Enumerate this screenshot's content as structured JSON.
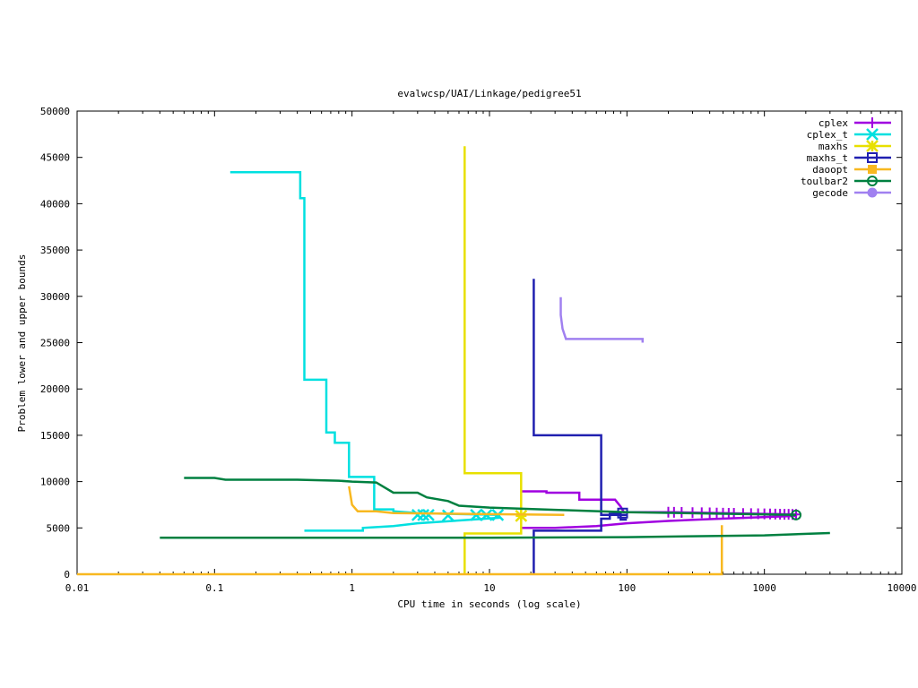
{
  "chart_data": {
    "type": "line",
    "title": "evalwcsp/UAI/Linkage/pedigree51",
    "xlabel": "CPU time in seconds (log scale)",
    "ylabel": "Problem lower and upper bounds",
    "x_scale": "log",
    "xlim": [
      0.01,
      10000
    ],
    "ylim": [
      0,
      50000
    ],
    "xticks": [
      0.01,
      0.1,
      1,
      10,
      100,
      1000,
      10000
    ],
    "xtick_labels": [
      "0.01",
      "0.1",
      "1",
      "10",
      "100",
      "1000",
      "10000"
    ],
    "yticks": [
      0,
      5000,
      10000,
      15000,
      20000,
      25000,
      30000,
      35000,
      40000,
      45000,
      50000
    ],
    "ytick_labels": [
      "0",
      "5000",
      "10000",
      "15000",
      "20000",
      "25000",
      "30000",
      "35000",
      "40000",
      "45000",
      "50000"
    ],
    "grid": false,
    "legend_position": "top-right",
    "series": [
      {
        "name": "cplex",
        "color": "#a000e0",
        "marker": "plus",
        "upper": [
          [
            17,
            8950
          ],
          [
            26,
            8950
          ],
          [
            26,
            8800
          ],
          [
            45,
            8800
          ],
          [
            45,
            8050
          ],
          [
            82,
            8050
          ],
          [
            90,
            7300
          ],
          [
            95,
            6700
          ],
          [
            200,
            6700
          ],
          [
            1700,
            6450
          ]
        ],
        "lower": [
          [
            17,
            5000
          ],
          [
            30,
            5000
          ],
          [
            60,
            5200
          ],
          [
            100,
            5500
          ],
          [
            200,
            5750
          ],
          [
            400,
            5950
          ],
          [
            1700,
            6300
          ]
        ],
        "markers_x": [
          200,
          220,
          250,
          300,
          350,
          400,
          450,
          500,
          550,
          600,
          700,
          800,
          900,
          1000,
          1100,
          1200,
          1300,
          1400,
          1500,
          1600,
          1700
        ]
      },
      {
        "name": "cplex_t",
        "color": "#00e0e0",
        "marker": "cross",
        "upper": [
          [
            0.13,
            43400
          ],
          [
            0.42,
            43400
          ],
          [
            0.42,
            40600
          ],
          [
            0.45,
            40600
          ],
          [
            0.45,
            21000
          ],
          [
            0.65,
            21000
          ],
          [
            0.65,
            15300
          ],
          [
            0.75,
            15300
          ],
          [
            0.75,
            14200
          ],
          [
            0.95,
            14200
          ],
          [
            0.95,
            10500
          ],
          [
            1.45,
            10500
          ],
          [
            1.45,
            7000
          ],
          [
            2.0,
            7000
          ],
          [
            2.0,
            6800
          ],
          [
            3.0,
            6600
          ],
          [
            12,
            6400
          ]
        ],
        "lower": [
          [
            0.45,
            4700
          ],
          [
            1.2,
            4700
          ],
          [
            1.2,
            5000
          ],
          [
            2.0,
            5200
          ],
          [
            3.0,
            5500
          ],
          [
            6.0,
            5800
          ],
          [
            12,
            6100
          ]
        ],
        "markers": [
          [
            3.0,
            6400
          ],
          [
            3.3,
            6400
          ],
          [
            3.6,
            6400
          ],
          [
            5.0,
            6350
          ],
          [
            8.0,
            6400
          ],
          [
            9.5,
            6400
          ],
          [
            11.5,
            6400
          ]
        ]
      },
      {
        "name": "maxhs",
        "color": "#e8e000",
        "marker": "star",
        "upper": [
          [
            6.6,
            46200
          ],
          [
            6.6,
            10900
          ],
          [
            17,
            10900
          ],
          [
            17,
            6300
          ]
        ],
        "lower": [
          [
            6.6,
            0
          ],
          [
            6.6,
            4400
          ],
          [
            17,
            4400
          ],
          [
            17,
            6300
          ]
        ],
        "markers": [
          [
            17,
            6300
          ]
        ]
      },
      {
        "name": "maxhs_t",
        "color": "#2020b0",
        "marker": "square",
        "upper": [
          [
            21,
            31900
          ],
          [
            21,
            15000
          ],
          [
            65,
            15000
          ],
          [
            65,
            6400
          ],
          [
            100,
            6400
          ]
        ],
        "lower": [
          [
            21,
            0
          ],
          [
            21,
            4700
          ],
          [
            65,
            4700
          ],
          [
            65,
            6000
          ],
          [
            75,
            6000
          ],
          [
            75,
            6500
          ],
          [
            90,
            6500
          ],
          [
            90,
            5900
          ],
          [
            100,
            5900
          ]
        ],
        "markers": [
          [
            93,
            6600
          ]
        ]
      },
      {
        "name": "daoopt",
        "color": "#f8b820",
        "marker": "filled-square",
        "upper": [
          [
            0.95,
            9500
          ],
          [
            1.0,
            7500
          ],
          [
            1.1,
            6800
          ],
          [
            1.5,
            6800
          ],
          [
            2.0,
            6600
          ],
          [
            35,
            6400
          ]
        ],
        "lower": [
          [
            0.01,
            0
          ],
          [
            490,
            0
          ],
          [
            490,
            5300
          ]
        ],
        "markers": []
      },
      {
        "name": "toulbar2",
        "color": "#008040",
        "marker": "circle",
        "upper": [
          [
            0.06,
            10400
          ],
          [
            0.1,
            10400
          ],
          [
            0.12,
            10200
          ],
          [
            0.4,
            10200
          ],
          [
            0.8,
            10100
          ],
          [
            1.0,
            10000
          ],
          [
            1.5,
            9900
          ],
          [
            2.0,
            8800
          ],
          [
            3.0,
            8800
          ],
          [
            3.5,
            8300
          ],
          [
            5.0,
            7900
          ],
          [
            6.0,
            7400
          ],
          [
            10,
            7200
          ],
          [
            30,
            6950
          ],
          [
            100,
            6700
          ],
          [
            1700,
            6400
          ]
        ],
        "lower": [
          [
            0.04,
            3950
          ],
          [
            10,
            3950
          ],
          [
            100,
            4000
          ],
          [
            300,
            4100
          ],
          [
            1000,
            4200
          ],
          [
            3000,
            4450
          ]
        ],
        "markers": [
          [
            1700,
            6400
          ]
        ]
      },
      {
        "name": "gecode",
        "color": "#a080f0",
        "marker": "filled-circle",
        "upper": [
          [
            33,
            29900
          ],
          [
            33,
            28000
          ],
          [
            34,
            26500
          ],
          [
            36,
            25400
          ],
          [
            130,
            25400
          ],
          [
            130,
            25000
          ]
        ],
        "lower": [],
        "markers": []
      }
    ]
  }
}
